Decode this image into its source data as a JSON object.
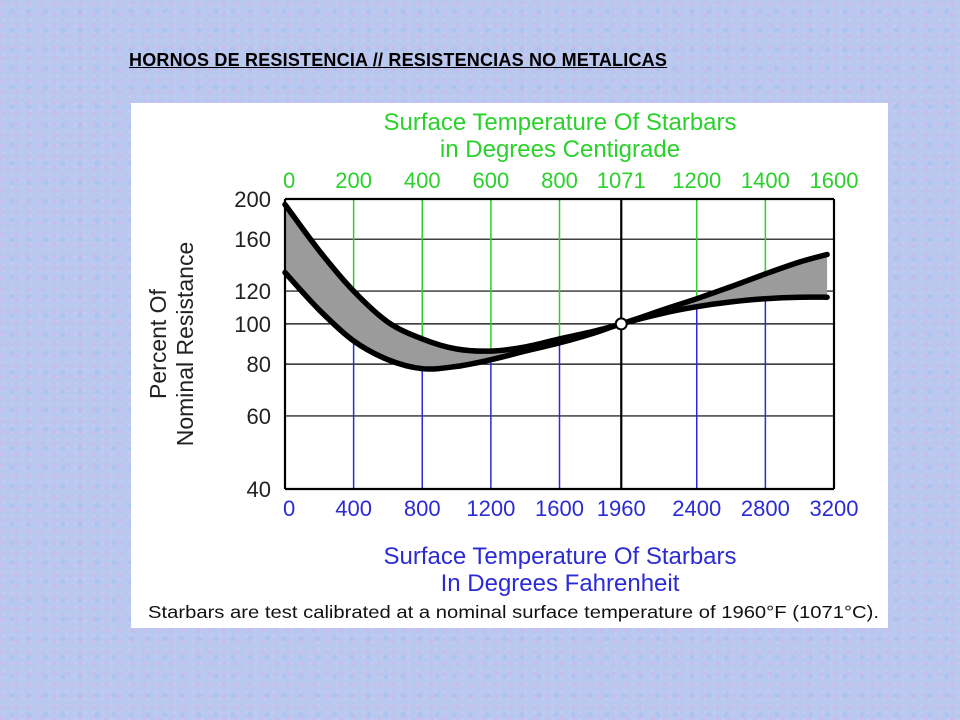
{
  "page": {
    "title": "HORNOS DE RESISTENCIA // RESISTENCIAS NO METALICAS"
  },
  "chart_data": {
    "type": "area",
    "title_top": [
      "Surface Temperature Of Starbars",
      "in Degrees Centigrade"
    ],
    "xlabel": [
      "Surface Temperature Of Starbars",
      "In Degrees Fahrenheit"
    ],
    "ylabel": [
      "Percent Of",
      "Nominal Resistance"
    ],
    "caption": "Starbars are test calibrated at a nominal surface temperature of 1960°F (1071°C).",
    "x_fahrenheit_ticks": [
      "0",
      "400",
      "800",
      "1200",
      "1600",
      "1960",
      "2400",
      "2800",
      "3200"
    ],
    "x_fahrenheit_values": [
      0,
      400,
      800,
      1200,
      1600,
      1960,
      2400,
      2800,
      3200
    ],
    "x_centigrade_ticks": [
      "0",
      "200",
      "400",
      "600",
      "800",
      "1071",
      "1200",
      "1400",
      "1600"
    ],
    "y_ticks": [
      "200",
      "160",
      "120",
      "100",
      "80",
      "60",
      "40"
    ],
    "y_tick_values": [
      200,
      160,
      120,
      100,
      80,
      60,
      40
    ],
    "y_scale": "log",
    "ylim": [
      40,
      200
    ],
    "xlim": [
      0,
      3200
    ],
    "grid": true,
    "calibration_point": {
      "x": 1960,
      "y": 100
    },
    "series": [
      {
        "values": [
          [
            0,
            194
          ],
          [
            200,
            150
          ],
          [
            400,
            120
          ],
          [
            600,
            101
          ],
          [
            800,
            92
          ],
          [
            1000,
            87
          ],
          [
            1200,
            86
          ],
          [
            1400,
            88
          ],
          [
            1600,
            92
          ],
          [
            1800,
            96
          ],
          [
            1960,
            100
          ],
          [
            2200,
            108
          ],
          [
            2400,
            115
          ],
          [
            2600,
            123
          ],
          [
            2800,
            132
          ],
          [
            3000,
            141
          ],
          [
            3160,
            147
          ]
        ]
      },
      {
        "values": [
          [
            0,
            133
          ],
          [
            200,
            108
          ],
          [
            400,
            91
          ],
          [
            600,
            82
          ],
          [
            800,
            78
          ],
          [
            1000,
            79
          ],
          [
            1200,
            82
          ],
          [
            1400,
            86
          ],
          [
            1600,
            90
          ],
          [
            1800,
            95
          ],
          [
            1960,
            100
          ],
          [
            2200,
            106
          ],
          [
            2400,
            110
          ],
          [
            2600,
            113
          ],
          [
            2800,
            115
          ],
          [
            3000,
            116
          ],
          [
            3160,
            116
          ]
        ]
      }
    ],
    "colors": {
      "band_fill": "#9b9b9b",
      "curve": "#000000",
      "top_axis": "#2bd12b",
      "bottom_axis": "#2b2bd6",
      "grid": "#000000"
    }
  }
}
